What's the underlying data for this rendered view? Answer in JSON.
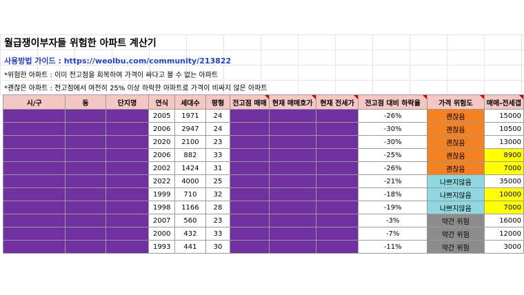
{
  "title": "월급쟁이부자들 위험한 아파트 계산기",
  "guide": "사용방법 가이드 : https://weolbu.com/community/213822",
  "note1": "*위험한 아파트 : 이미 전고점을 회복하여 가격이 싸다고 볼 수 없는 아파트",
  "note2": "*괜찮은 아파트 : 전고점에서 여전히 25% 이상 하락한 아파트로 가격이 비싸지 않은 아파트",
  "headers": [
    "시/구",
    "동",
    "단지명",
    "연식",
    "세대수",
    "평형",
    "전고점 매매",
    "현재 매매호가",
    "현재 전세가",
    "전고점 대비 하락율",
    "가격 위험도",
    "매매-전세갭"
  ],
  "colors": {
    "header_bg": "#f4c7c3",
    "redacted": "#7030a0",
    "ok": "#f58220",
    "bad": "#8fd8e0",
    "mid": "#8c8c8c",
    "highlight": "#ffff00"
  },
  "rows": [
    {
      "year": "2005",
      "households": "1971",
      "size": "24",
      "drop": "-26%",
      "risk": "괜찮음",
      "risk_class": "r-ok",
      "gap": "15000",
      "gap_hl": false
    },
    {
      "year": "2006",
      "households": "2947",
      "size": "24",
      "drop": "-30%",
      "risk": "괜찮음",
      "risk_class": "r-ok",
      "gap": "10500",
      "gap_hl": false
    },
    {
      "year": "2020",
      "households": "2100",
      "size": "23",
      "drop": "-30%",
      "risk": "괜찮음",
      "risk_class": "r-ok",
      "gap": "13000",
      "gap_hl": false
    },
    {
      "year": "2006",
      "households": "882",
      "size": "33",
      "drop": "-25%",
      "risk": "괜찮음",
      "risk_class": "r-ok",
      "gap": "8900",
      "gap_hl": true
    },
    {
      "year": "2002",
      "households": "1424",
      "size": "31",
      "drop": "-26%",
      "risk": "괜찮음",
      "risk_class": "r-ok",
      "gap": "7000",
      "gap_hl": true
    },
    {
      "year": "2022",
      "households": "4000",
      "size": "25",
      "drop": "-21%",
      "risk": "나쁘지않음",
      "risk_class": "r-bad",
      "gap": "35000",
      "gap_hl": false
    },
    {
      "year": "1999",
      "households": "710",
      "size": "32",
      "drop": "-18%",
      "risk": "나쁘지않음",
      "risk_class": "r-bad",
      "gap": "10000",
      "gap_hl": true
    },
    {
      "year": "1998",
      "households": "1166",
      "size": "28",
      "drop": "-19%",
      "risk": "나쁘지않음",
      "risk_class": "r-bad",
      "gap": "7000",
      "gap_hl": true
    },
    {
      "year": "2007",
      "households": "560",
      "size": "23",
      "drop": "-3%",
      "risk": "약간 위험",
      "risk_class": "r-mid",
      "gap": "16000",
      "gap_hl": false
    },
    {
      "year": "2000",
      "households": "432",
      "size": "33",
      "drop": "-7%",
      "risk": "약간 위험",
      "risk_class": "r-mid",
      "gap": "12000",
      "gap_hl": false
    },
    {
      "year": "1993",
      "households": "441",
      "size": "30",
      "drop": "-11%",
      "risk": "약간 위험",
      "risk_class": "r-mid",
      "gap": "3000",
      "gap_hl": false
    }
  ]
}
